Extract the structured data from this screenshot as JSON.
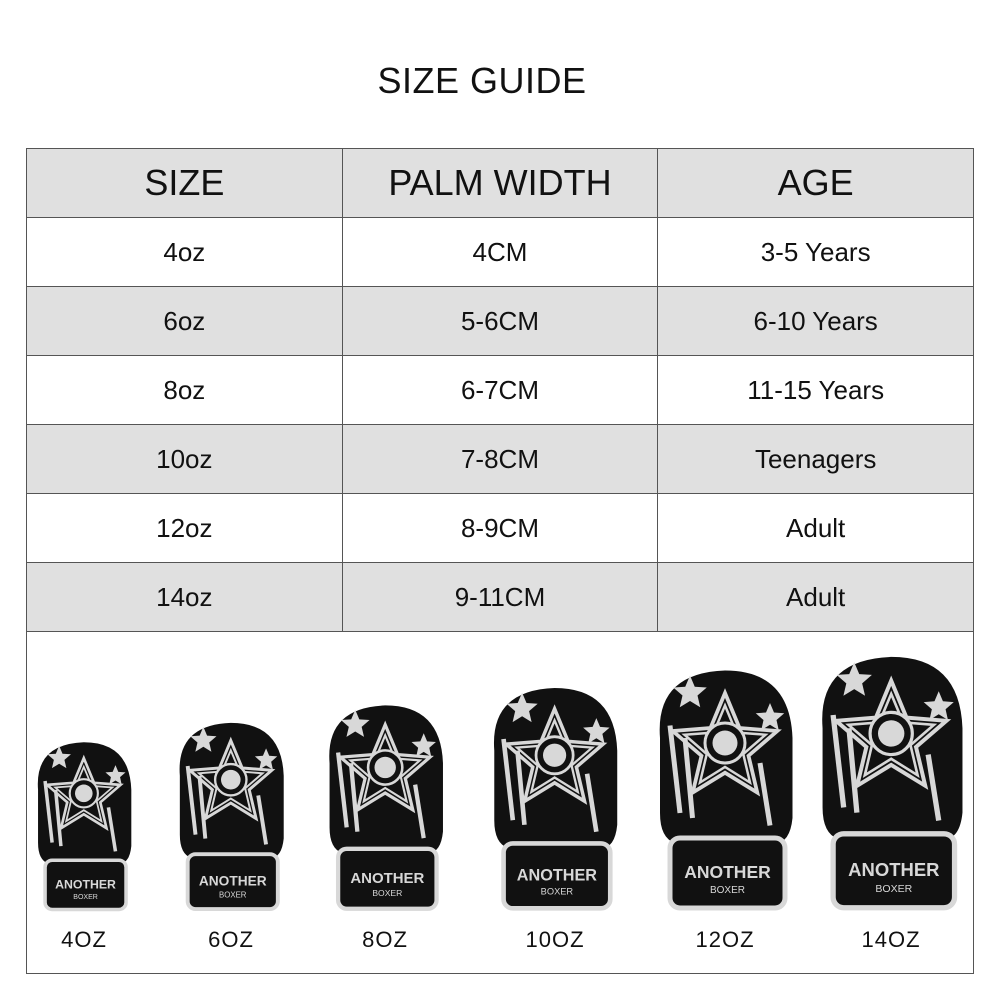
{
  "title": "SIZE GUIDE",
  "table": {
    "headers": [
      "SIZE",
      "PALM WIDTH",
      "AGE"
    ],
    "rows": [
      [
        "4oz",
        "4CM",
        "3-5 Years"
      ],
      [
        "6oz",
        "5-6CM",
        "6-10 Years"
      ],
      [
        "8oz",
        "6-7CM",
        "11-15 Years"
      ],
      [
        "10oz",
        "7-8CM",
        "Teenagers"
      ],
      [
        "12oz",
        "8-9CM",
        "Adult"
      ],
      [
        "14oz",
        "9-11CM",
        "Adult"
      ]
    ]
  },
  "gloves": {
    "brand": "ANOTHER BOXER",
    "labels": [
      "4OZ",
      "6OZ",
      "8OZ",
      "10OZ",
      "12OZ",
      "14OZ"
    ]
  },
  "colors": {
    "header_bg": "#e0e0e0",
    "glove_body": "#111111",
    "glove_pattern": "#d8d8d8"
  }
}
